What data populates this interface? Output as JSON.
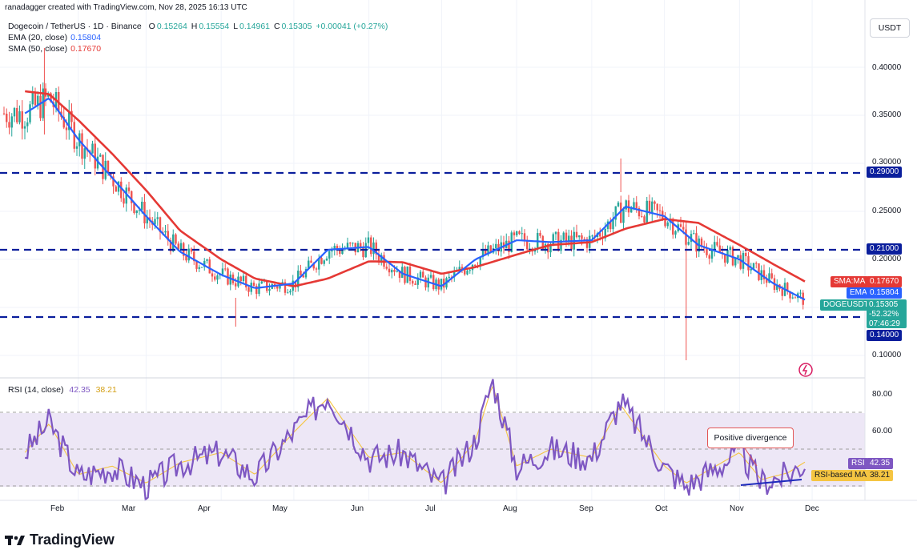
{
  "header": {
    "attribution": "ranadagger created with TradingView.com, Nov 28, 2025 16:13 UTC"
  },
  "legend": {
    "symbol_line": "Dogecoin / TetherUS · 1D · Binance",
    "ohlc": {
      "o_label": "O",
      "o": "0.15264",
      "h_label": "H",
      "h": "0.15554",
      "l_label": "L",
      "l": "0.14961",
      "c_label": "C",
      "c": "0.15305",
      "change": "+0.00041 (+0.27%)"
    },
    "ema_label": "EMA (20, close)",
    "ema_value": "0.15804",
    "sma_label": "SMA (50, close)",
    "sma_value": "0.17670",
    "rsi_label": "RSI (14, close)",
    "rsi_value": "42.35",
    "rsi_ma_value": "38.21"
  },
  "price_axis": {
    "currency": "USDT",
    "ticks": [
      "0.40000",
      "0.35000",
      "0.30000",
      "0.25000",
      "0.20000",
      "0.10000"
    ],
    "level_tags": [
      "0.29000",
      "0.21000",
      "0.14000"
    ]
  },
  "price_tags": {
    "sma_label": "SMA:MA",
    "sma_value": "0.17670",
    "ema_label": "EMA",
    "ema_value": "0.15804",
    "symbol_label": "DOGEUSDT",
    "symbol_value": "0.15305",
    "pct": "-52.32%",
    "countdown": "07:46:29"
  },
  "rsi_axis": {
    "ticks": [
      "80.00",
      "60.00"
    ],
    "rsi_tag_label": "RSI",
    "rsi_tag_value": "42.35",
    "ma_tag_label": "RSI-based MA",
    "ma_tag_value": "38.21"
  },
  "time_axis": {
    "ticks": [
      "Feb",
      "Mar",
      "Apr",
      "May",
      "Jun",
      "Jul",
      "Aug",
      "Sep",
      "Oct",
      "Nov",
      "Dec"
    ]
  },
  "annotation": {
    "text": "Positive divergence"
  },
  "brand": {
    "name": "TradingView"
  },
  "colors": {
    "up": "#26a69a",
    "down": "#ef5350",
    "ema": "#2962ff",
    "sma": "#e53935",
    "level": "#0a1e9c",
    "rsi": "#7e57c2",
    "rsi_ma": "#f5c542",
    "band": "#ede7f6"
  },
  "chart_data": {
    "type": "line",
    "title": "Dogecoin / TetherUS · 1D · Binance",
    "y_range": [
      0.09,
      0.43
    ],
    "series": [
      {
        "name": "EMA (20, close)",
        "x": [
          "2025-01-10",
          "2025-01-20",
          "2025-02-01",
          "2025-02-15",
          "2025-03-01",
          "2025-03-15",
          "2025-04-01",
          "2025-04-15",
          "2025-05-01",
          "2025-05-15",
          "2025-06-01",
          "2025-06-15",
          "2025-07-01",
          "2025-07-15",
          "2025-08-01",
          "2025-08-15",
          "2025-09-01",
          "2025-09-15",
          "2025-10-01",
          "2025-10-15",
          "2025-11-01",
          "2025-11-15",
          "2025-11-28"
        ],
        "values": [
          0.352,
          0.368,
          0.325,
          0.285,
          0.245,
          0.208,
          0.184,
          0.17,
          0.175,
          0.21,
          0.213,
          0.185,
          0.172,
          0.2,
          0.22,
          0.218,
          0.22,
          0.255,
          0.245,
          0.215,
          0.2,
          0.175,
          0.158
        ]
      },
      {
        "name": "SMA (50, close)",
        "x": [
          "2025-01-10",
          "2025-01-20",
          "2025-02-01",
          "2025-02-15",
          "2025-03-01",
          "2025-03-15",
          "2025-04-01",
          "2025-04-15",
          "2025-05-01",
          "2025-05-15",
          "2025-06-01",
          "2025-06-15",
          "2025-07-01",
          "2025-07-15",
          "2025-08-01",
          "2025-08-15",
          "2025-09-01",
          "2025-09-15",
          "2025-10-01",
          "2025-10-15",
          "2025-11-01",
          "2025-11-15",
          "2025-11-28"
        ],
        "values": [
          0.375,
          0.372,
          0.345,
          0.31,
          0.272,
          0.23,
          0.2,
          0.18,
          0.172,
          0.18,
          0.198,
          0.197,
          0.185,
          0.192,
          0.205,
          0.215,
          0.218,
          0.232,
          0.242,
          0.238,
          0.215,
          0.195,
          0.177
        ]
      },
      {
        "name": "RSI (14, close)",
        "x": [
          "2025-01-10",
          "2025-01-20",
          "2025-02-01",
          "2025-02-15",
          "2025-03-01",
          "2025-03-15",
          "2025-04-01",
          "2025-04-15",
          "2025-05-01",
          "2025-05-15",
          "2025-06-01",
          "2025-06-15",
          "2025-07-01",
          "2025-07-15",
          "2025-07-22",
          "2025-08-01",
          "2025-08-15",
          "2025-09-01",
          "2025-09-13",
          "2025-10-01",
          "2025-10-10",
          "2025-11-01",
          "2025-11-10",
          "2025-11-21",
          "2025-11-28"
        ],
        "values": [
          48,
          65,
          35,
          40,
          30,
          42,
          48,
          35,
          60,
          80,
          45,
          48,
          30,
          55,
          88,
          40,
          50,
          45,
          76,
          40,
          30,
          48,
          32,
          36,
          42.35
        ]
      }
    ],
    "levels": [
      0.29,
      0.21,
      0.14
    ],
    "close": 0.15305,
    "rsi_levels": [
      70,
      50,
      30
    ],
    "annotations": [
      "Positive divergence"
    ]
  }
}
